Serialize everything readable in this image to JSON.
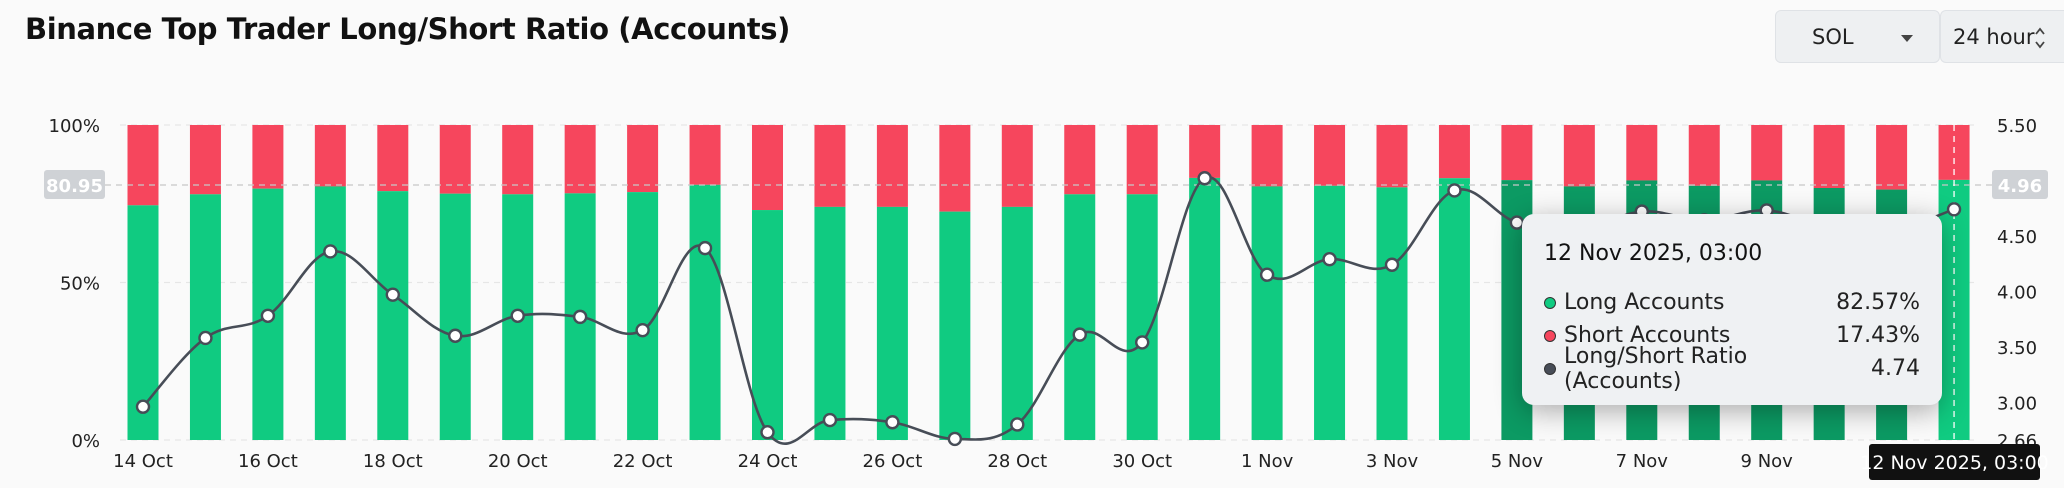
{
  "header": {
    "title": "Binance Top Trader Long/Short Ratio (Accounts)",
    "asset_select": "SOL",
    "period_select": "24 hour"
  },
  "icons": {
    "asset_caret": "caret-down-icon",
    "period_updown": "chevron-updown-icon"
  },
  "colors": {
    "long": "#10cb81",
    "long_dim": "#0c9a63",
    "short": "#f6465d",
    "ratio_line": "#474d57",
    "crosshair_label_bg": "#111111"
  },
  "tooltip": {
    "date": "12 Nov 2025, 03:00",
    "rows": [
      {
        "label": "Long Accounts",
        "value": "82.57%",
        "color": "#10cb81"
      },
      {
        "label": "Short Accounts",
        "value": "17.43%",
        "color": "#f6465d"
      },
      {
        "label": "Long/Short Ratio (Accounts)",
        "value": "4.74",
        "color": "#474d57"
      }
    ]
  },
  "crosshair": {
    "x_label": "12 Nov 2025, 03:00",
    "left_value": "80.95",
    "right_value": "4.96"
  },
  "chart_data": {
    "type": "bar",
    "stacked_percent": true,
    "secondary_line": true,
    "categories": [
      "14 Oct",
      "15 Oct",
      "16 Oct",
      "17 Oct",
      "18 Oct",
      "19 Oct",
      "20 Oct",
      "21 Oct",
      "22 Oct",
      "23 Oct",
      "24 Oct",
      "25 Oct",
      "26 Oct",
      "27 Oct",
      "28 Oct",
      "29 Oct",
      "30 Oct",
      "31 Oct",
      "1 Nov",
      "2 Nov",
      "3 Nov",
      "4 Nov",
      "5 Nov",
      "6 Nov",
      "7 Nov",
      "8 Nov",
      "9 Nov",
      "10 Nov",
      "11 Nov",
      "12 Nov"
    ],
    "x_tick_labels": [
      "14 Oct",
      "16 Oct",
      "18 Oct",
      "20 Oct",
      "22 Oct",
      "24 Oct",
      "26 Oct",
      "28 Oct",
      "30 Oct",
      "1 Nov",
      "3 Nov",
      "5 Nov",
      "7 Nov",
      "9 Nov"
    ],
    "series": [
      {
        "name": "Long Accounts",
        "axis": "left",
        "values": [
          74.5,
          78.0,
          79.8,
          80.5,
          79.0,
          78.2,
          78.0,
          78.3,
          78.7,
          81.0,
          73.0,
          74.0,
          74.0,
          72.5,
          74.0,
          78.0,
          78.0,
          83.2,
          80.5,
          80.7,
          80.2,
          83.1,
          82.5,
          80.5,
          82.4,
          80.7,
          82.4,
          80.0,
          79.5,
          82.57
        ]
      },
      {
        "name": "Short Accounts",
        "axis": "left",
        "values": [
          25.5,
          22.0,
          20.2,
          19.5,
          21.0,
          21.8,
          22.0,
          21.7,
          21.3,
          19.0,
          27.0,
          26.0,
          26.0,
          27.5,
          26.0,
          22.0,
          22.0,
          16.8,
          19.5,
          19.3,
          19.8,
          16.9,
          17.5,
          19.5,
          17.6,
          19.3,
          17.6,
          20.0,
          20.5,
          17.43
        ]
      },
      {
        "name": "Long/Short Ratio (Accounts)",
        "axis": "right",
        "values": [
          2.96,
          3.58,
          3.78,
          4.36,
          3.97,
          3.6,
          3.78,
          3.77,
          3.65,
          4.39,
          2.73,
          2.84,
          2.82,
          2.67,
          2.8,
          3.61,
          3.54,
          5.02,
          4.15,
          4.29,
          4.24,
          4.91,
          4.62,
          4.55,
          4.72,
          4.64,
          4.73,
          4.58,
          4.55,
          4.74
        ]
      }
    ],
    "y_left": {
      "ticks": [
        "100%",
        "50%",
        "0%"
      ],
      "ylim": [
        0,
        100
      ]
    },
    "y_right": {
      "ticks": [
        "5.50",
        "5.00",
        "4.50",
        "4.00",
        "3.50",
        "3.00",
        "2.66"
      ],
      "ylim": [
        2.66,
        5.5
      ]
    },
    "grid": true,
    "legend": "none"
  }
}
